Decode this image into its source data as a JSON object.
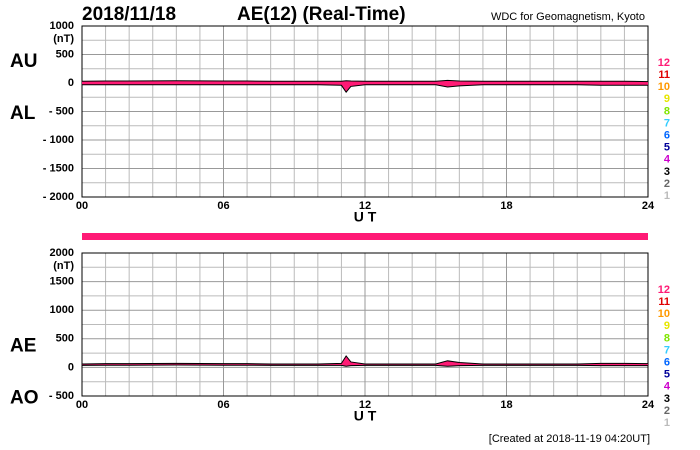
{
  "chart_data": [
    {
      "type": "area",
      "date": "2018/11/18",
      "title": "AE(12) (Real-Time)",
      "source": "WDC for Geomagnetism, Kyoto",
      "y_label": "(nT)",
      "x_label": "U T",
      "fill_color": "#ff1a75",
      "grid": true,
      "xlim": [
        0,
        24
      ],
      "xticks": [
        {
          "value": 0,
          "label": "00"
        },
        {
          "value": 6,
          "label": "06"
        },
        12,
        18,
        24
      ],
      "ylim": [
        -2000,
        1000
      ],
      "yticks": [
        1000,
        500,
        0,
        {
          "value": -500,
          "label": "- 500"
        },
        {
          "value": -1000,
          "label": "- 1000"
        },
        {
          "value": -1500,
          "label": "- 1500"
        },
        {
          "value": -2000,
          "label": "- 2000"
        }
      ],
      "x": [
        0,
        1,
        2,
        3,
        4,
        5,
        6,
        7,
        8,
        9,
        10,
        11,
        11.2,
        11.4,
        12,
        13,
        14,
        15,
        15.5,
        16,
        17,
        18,
        19,
        20,
        21,
        22,
        23,
        24
      ],
      "series": [
        {
          "name": "AU",
          "color": "#000000",
          "values": [
            30,
            35,
            35,
            38,
            40,
            38,
            35,
            35,
            30,
            30,
            30,
            30,
            40,
            35,
            30,
            30,
            30,
            30,
            45,
            35,
            30,
            30,
            30,
            30,
            30,
            30,
            30,
            25
          ]
        },
        {
          "name": "AL",
          "color": "#000000",
          "values": [
            -30,
            -30,
            -30,
            -30,
            -30,
            -30,
            -30,
            -30,
            -30,
            -30,
            -30,
            -40,
            -160,
            -60,
            -30,
            -30,
            -30,
            -30,
            -70,
            -50,
            -30,
            -30,
            -30,
            -30,
            -30,
            -40,
            -40,
            -40
          ]
        }
      ],
      "legend": [
        {
          "label": "12",
          "color": "#ff1a75"
        },
        {
          "label": "11",
          "color": "#e00000"
        },
        {
          "label": "10",
          "color": "#ff9900"
        },
        {
          "label": "9",
          "color": "#e6e600"
        },
        {
          "label": "8",
          "color": "#80e600"
        },
        {
          "label": "7",
          "color": "#33ccff"
        },
        {
          "label": "6",
          "color": "#0066ff"
        },
        {
          "label": "5",
          "color": "#000099"
        },
        {
          "label": "4",
          "color": "#cc00cc"
        },
        {
          "label": "3",
          "color": "#000000"
        },
        {
          "label": "2",
          "color": "#666666"
        },
        {
          "label": "1",
          "color": "#bbbbbb"
        }
      ]
    },
    {
      "type": "area",
      "y_label": "(nT)",
      "x_label": "U T",
      "fill_color": "#ff1a75",
      "grid": true,
      "note": "[Created at 2018-11-19 04:20UT]",
      "xlim": [
        0,
        24
      ],
      "xticks": [
        {
          "value": 0,
          "label": "00"
        },
        {
          "value": 6,
          "label": "06"
        },
        12,
        18,
        24
      ],
      "ylim": [
        -500,
        2000
      ],
      "yticks": [
        2000,
        1500,
        1000,
        500,
        0,
        {
          "value": -500,
          "label": "- 500"
        }
      ],
      "x": [
        0,
        1,
        2,
        3,
        4,
        5,
        6,
        7,
        8,
        9,
        10,
        11,
        11.2,
        11.4,
        12,
        13,
        14,
        15,
        15.5,
        16,
        17,
        18,
        19,
        20,
        21,
        22,
        23,
        24
      ],
      "series": [
        {
          "name": "AE",
          "color": "#000000",
          "values": [
            60,
            65,
            65,
            68,
            70,
            68,
            65,
            65,
            60,
            60,
            60,
            70,
            200,
            95,
            60,
            60,
            60,
            60,
            115,
            85,
            60,
            60,
            60,
            60,
            60,
            70,
            70,
            65
          ]
        },
        {
          "name": "AO",
          "color": "#000000",
          "values": [
            35,
            38,
            38,
            40,
            42,
            40,
            38,
            38,
            35,
            35,
            35,
            35,
            20,
            30,
            35,
            35,
            35,
            35,
            20,
            30,
            35,
            35,
            35,
            35,
            35,
            30,
            30,
            30
          ]
        }
      ],
      "legend": [
        {
          "label": "12",
          "color": "#ff1a75"
        },
        {
          "label": "11",
          "color": "#e00000"
        },
        {
          "label": "10",
          "color": "#ff9900"
        },
        {
          "label": "9",
          "color": "#e6e600"
        },
        {
          "label": "8",
          "color": "#80e600"
        },
        {
          "label": "7",
          "color": "#33ccff"
        },
        {
          "label": "6",
          "color": "#0066ff"
        },
        {
          "label": "5",
          "color": "#000099"
        },
        {
          "label": "4",
          "color": "#cc00cc"
        },
        {
          "label": "3",
          "color": "#000000"
        },
        {
          "label": "2",
          "color": "#666666"
        },
        {
          "label": "1",
          "color": "#bbbbbb"
        }
      ]
    }
  ]
}
